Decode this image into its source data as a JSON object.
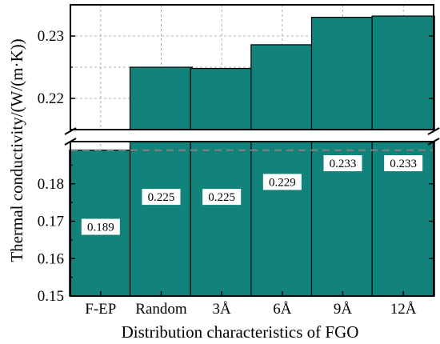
{
  "chart_data": {
    "type": "bar",
    "xlabel": "Distribution characteristics of FGO",
    "ylabel": "Thermal conductivity/(W/(m·K))",
    "categories": [
      "F-EP",
      "Random",
      "3Å",
      "6Å",
      "9Å",
      "12Å"
    ],
    "values": [
      0.189,
      0.225,
      0.2248,
      0.2286,
      0.233,
      0.2332
    ],
    "data_labels": [
      "0.189",
      "0.225",
      "0.225",
      "0.229",
      "0.233",
      "0.233"
    ],
    "yaxis_broken": true,
    "ylim_lower": [
      0.15,
      0.19
    ],
    "ylim_upper": [
      0.215,
      0.235
    ],
    "yticks_lower": [
      "0.15",
      "0.16",
      "0.17",
      "0.18"
    ],
    "yticks_upper": [
      "0.22",
      "0.23"
    ],
    "reference_line": 0.189,
    "grid": true,
    "colors": {
      "bar": "#12837b",
      "bar_edge": "#000000",
      "grid": "#9a9a9a",
      "reference_line": "#808080"
    }
  }
}
